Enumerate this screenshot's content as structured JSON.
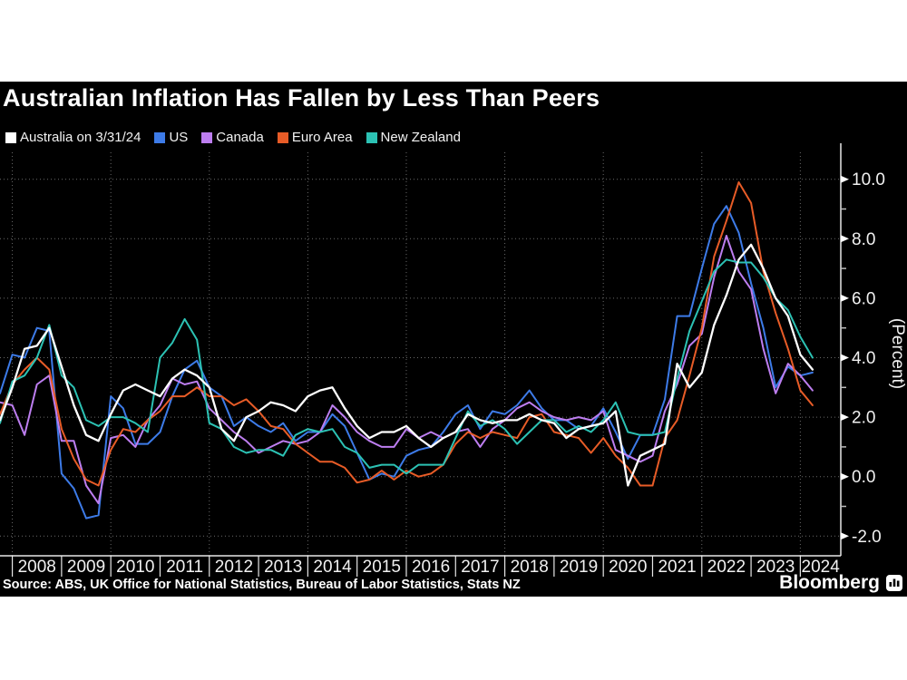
{
  "source": "Source: ABS, UK Office for National Statistics, Bureau of Labor Statistics, Stats NZ",
  "brand": {
    "name": "Bloomberg",
    "icon": "bar-chart-icon"
  },
  "chart_data": {
    "type": "line",
    "title": "Australian Inflation Has Fallen by Less Than Peers",
    "ylabel": "(Percent)",
    "legend_position": "top-left",
    "grid": "dotted",
    "background": "#000000",
    "grid_color": "#6a6a6a",
    "axis_color": "#e8e8e8",
    "ylim": [
      -2.7,
      10.9
    ],
    "y_tick_values": [
      10,
      8,
      6,
      4,
      2,
      0,
      -2
    ],
    "y_tick_labels": [
      "10.0",
      "8.0",
      "6.0",
      "4.0",
      "2.0",
      "0.0",
      "-2.0"
    ],
    "y_minor_ticks": [
      9,
      7,
      5,
      3,
      1,
      -1
    ],
    "x_years": [
      "2008",
      "2009",
      "2010",
      "2011",
      "2012",
      "2013",
      "2014",
      "2015",
      "2016",
      "2017",
      "2018",
      "2019",
      "2020",
      "2021",
      "2022",
      "2023",
      "2024"
    ],
    "x_gridline_years": [
      2008,
      2010,
      2012,
      2014,
      2016,
      2018,
      2020,
      2022,
      2024
    ],
    "x_start": 2007.75,
    "x_step": 0.25,
    "x_unit": "quarterly, year fraction",
    "series": [
      {
        "name": "Australia on 3/31/24",
        "color": "#ffffff",
        "values": [
          1.9,
          3.0,
          4.3,
          4.4,
          5.0,
          3.7,
          2.4,
          1.4,
          1.2,
          2.1,
          2.9,
          3.1,
          2.9,
          2.7,
          3.3,
          3.6,
          3.4,
          3.0,
          1.6,
          1.2,
          2.0,
          2.2,
          2.5,
          2.4,
          2.2,
          2.7,
          2.9,
          3.0,
          2.3,
          1.7,
          1.3,
          1.5,
          1.5,
          1.7,
          1.3,
          1.0,
          1.3,
          1.5,
          2.1,
          1.9,
          1.8,
          1.9,
          1.9,
          2.1,
          1.9,
          1.8,
          1.3,
          1.6,
          1.7,
          1.8,
          2.2,
          -0.3,
          0.7,
          0.9,
          1.1,
          3.8,
          3.0,
          3.5,
          5.1,
          6.1,
          7.3,
          7.8,
          7.0,
          6.0,
          5.4,
          4.1,
          3.6
        ]
      },
      {
        "name": "US",
        "color": "#3d7be8",
        "values": [
          2.8,
          4.1,
          4.0,
          5.0,
          4.9,
          0.1,
          -0.4,
          -1.4,
          -1.3,
          2.7,
          2.3,
          1.1,
          1.1,
          1.5,
          2.7,
          3.6,
          3.9,
          3.0,
          2.7,
          1.7,
          2.0,
          1.7,
          1.5,
          1.8,
          1.2,
          1.5,
          1.5,
          2.1,
          1.7,
          0.8,
          -0.1,
          0.1,
          0.0,
          0.7,
          0.9,
          1.0,
          1.5,
          2.1,
          2.4,
          1.6,
          2.2,
          2.1,
          2.4,
          2.9,
          2.3,
          1.9,
          1.9,
          1.6,
          1.7,
          2.3,
          1.5,
          0.6,
          1.4,
          1.4,
          2.6,
          5.4,
          5.4,
          7.0,
          8.5,
          9.1,
          8.2,
          6.5,
          5.0,
          3.0,
          3.7,
          3.4,
          3.5
        ]
      },
      {
        "name": "Canada",
        "color": "#bd7ef0",
        "values": [
          2.5,
          2.4,
          1.4,
          3.1,
          3.4,
          1.2,
          1.2,
          -0.3,
          -0.9,
          1.3,
          1.4,
          1.0,
          1.9,
          2.4,
          3.3,
          3.1,
          3.2,
          2.3,
          1.9,
          1.5,
          1.2,
          0.8,
          1.0,
          1.2,
          1.1,
          1.2,
          1.5,
          2.4,
          2.0,
          1.5,
          1.2,
          1.0,
          1.0,
          1.6,
          1.3,
          1.5,
          1.3,
          1.5,
          1.6,
          1.0,
          1.6,
          1.9,
          2.3,
          2.5,
          2.2,
          2.0,
          1.9,
          2.0,
          1.9,
          2.2,
          0.9,
          0.7,
          0.5,
          0.7,
          2.2,
          3.1,
          4.4,
          4.8,
          6.7,
          8.1,
          6.9,
          6.3,
          4.3,
          2.8,
          3.8,
          3.4,
          2.9
        ]
      },
      {
        "name": "Euro Area",
        "color": "#e85c27",
        "values": [
          2.1,
          3.1,
          3.6,
          4.0,
          3.6,
          1.6,
          0.6,
          -0.1,
          -0.3,
          0.9,
          1.6,
          1.5,
          1.9,
          2.2,
          2.7,
          2.7,
          3.0,
          2.7,
          2.7,
          2.4,
          2.6,
          2.2,
          1.7,
          1.6,
          1.1,
          0.8,
          0.5,
          0.5,
          0.3,
          -0.2,
          -0.1,
          0.2,
          -0.1,
          0.2,
          0.0,
          0.1,
          0.4,
          1.1,
          1.5,
          1.3,
          1.5,
          1.4,
          1.3,
          2.0,
          2.1,
          1.5,
          1.4,
          1.3,
          0.8,
          1.3,
          0.7,
          0.3,
          -0.3,
          -0.3,
          1.3,
          1.9,
          3.4,
          5.0,
          7.4,
          8.6,
          9.9,
          9.2,
          6.9,
          5.5,
          4.3,
          2.9,
          2.4
        ]
      },
      {
        "name": "New Zealand",
        "color": "#2cc2b4",
        "values": [
          1.8,
          3.2,
          3.4,
          4.0,
          5.1,
          3.4,
          3.0,
          1.9,
          1.7,
          2.0,
          2.0,
          1.8,
          1.5,
          4.0,
          4.5,
          5.3,
          4.6,
          1.8,
          1.6,
          1.0,
          0.8,
          0.9,
          0.9,
          0.7,
          1.4,
          1.6,
          1.5,
          1.6,
          1.0,
          0.8,
          0.3,
          0.4,
          0.4,
          0.1,
          0.4,
          0.4,
          0.4,
          1.3,
          2.2,
          1.7,
          1.9,
          1.6,
          1.1,
          1.5,
          1.9,
          1.9,
          1.5,
          1.7,
          1.5,
          1.9,
          2.5,
          1.5,
          1.4,
          1.4,
          1.5,
          3.3,
          4.9,
          5.9,
          6.9,
          7.3,
          7.2,
          7.2,
          6.7,
          6.0,
          5.6,
          4.7,
          4.0
        ]
      }
    ]
  }
}
